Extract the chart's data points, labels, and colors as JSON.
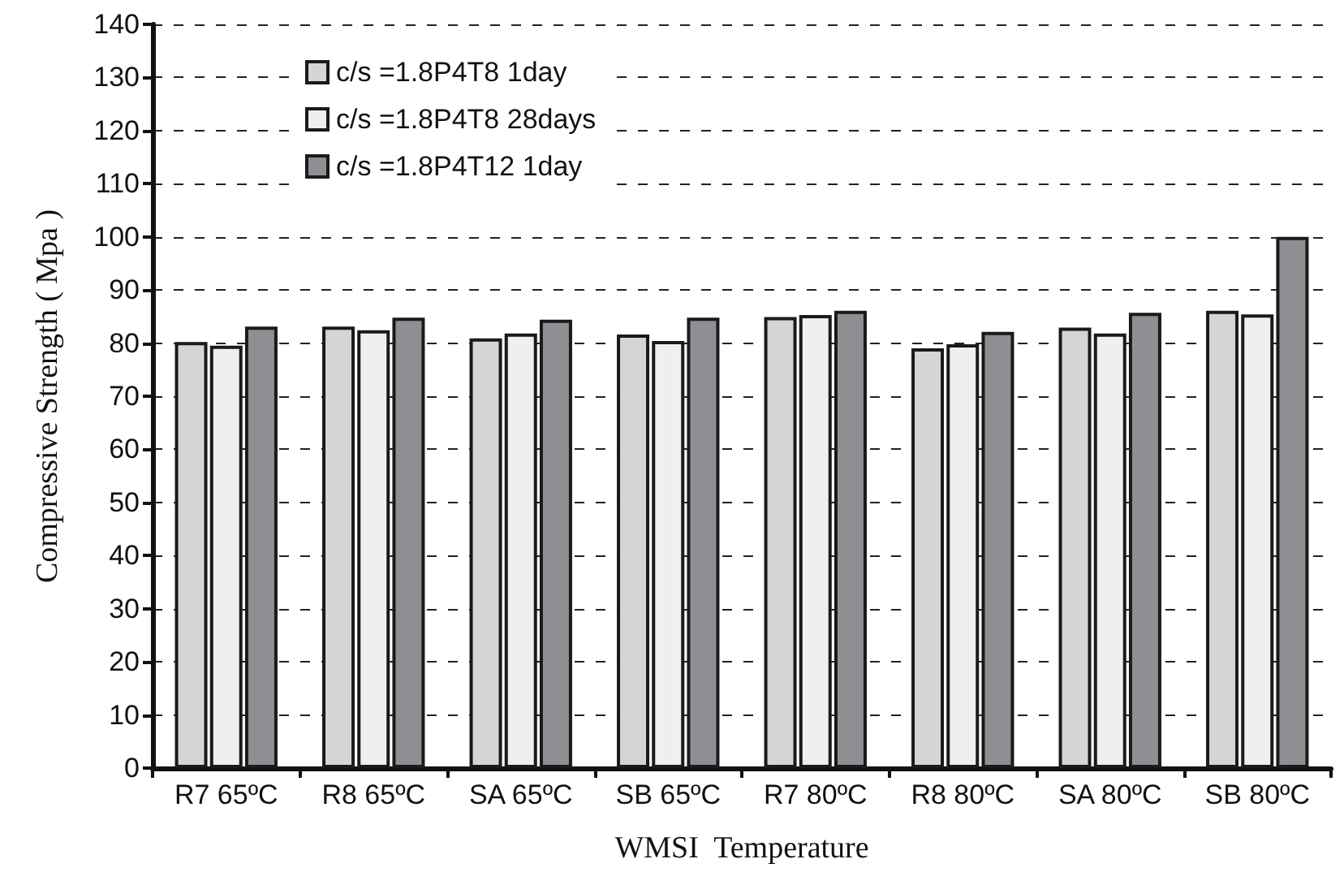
{
  "chart_data": {
    "type": "bar",
    "xlabel": "WMSI  Temperature",
    "ylabel": "Compressive Strength ( Mpa )",
    "categories": [
      "R7 65ºC",
      "R8 65ºC",
      "SA 65ºC",
      "SB 65ºC",
      "R7 80ºC",
      "R8 80ºC",
      "SA 80ºC",
      "SB 80ºC"
    ],
    "series": [
      {
        "name": "c/s =1.8P4T8 1day",
        "color": "#d4d5d7",
        "values": [
          80.2,
          83.1,
          80.9,
          81.6,
          84.9,
          79.0,
          82.9,
          86.1
        ]
      },
      {
        "name": "c/s =1.8P4T8 28days",
        "color": "#efefef",
        "values": [
          79.5,
          82.4,
          81.8,
          80.4,
          85.3,
          79.8,
          81.8,
          85.4
        ]
      },
      {
        "name": "c/s =1.8P4T12 1day",
        "color": "#8e8f93",
        "values": [
          83.1,
          84.8,
          84.4,
          84.8,
          86.1,
          82.1,
          85.7,
          100
        ]
      }
    ],
    "ylim": [
      0,
      140
    ],
    "yticks": [
      0,
      10,
      20,
      30,
      40,
      50,
      60,
      70,
      80,
      90,
      100,
      110,
      120,
      130,
      140
    ],
    "grid": "y",
    "legend": "top left"
  }
}
